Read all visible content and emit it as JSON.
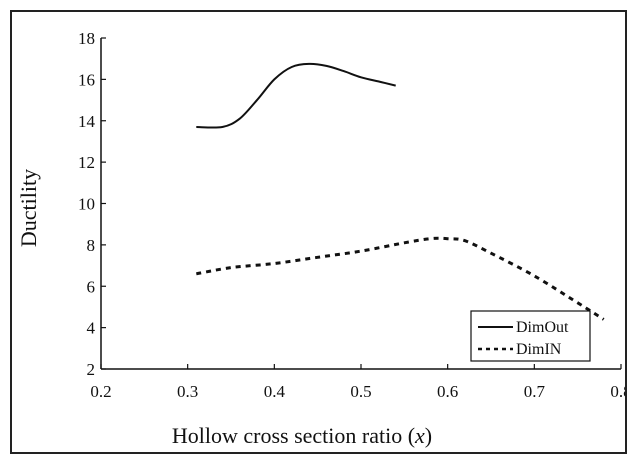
{
  "chart_data": {
    "type": "line",
    "xlabel": "Hollow cross section ratio (",
    "xlabel_var": "x",
    "xlabel_close": ")",
    "ylabel": "Ductility",
    "xlim": [
      0.2,
      0.8
    ],
    "ylim": [
      2,
      18
    ],
    "xticks": [
      "0.2",
      "0.3",
      "0.4",
      "0.5",
      "0.6",
      "0.7",
      "0.8"
    ],
    "yticks": [
      "2",
      "4",
      "6",
      "8",
      "10",
      "12",
      "14",
      "16",
      "18"
    ],
    "grid": false,
    "legend_position": "bottom-right",
    "series": [
      {
        "name": "DimOut",
        "style": "solid",
        "color": "#111111",
        "x": [
          0.31,
          0.34,
          0.36,
          0.38,
          0.4,
          0.42,
          0.44,
          0.46,
          0.48,
          0.5,
          0.52,
          0.54
        ],
        "y": [
          13.7,
          13.7,
          14.1,
          15.0,
          16.0,
          16.6,
          16.75,
          16.65,
          16.4,
          16.1,
          15.9,
          15.7
        ]
      },
      {
        "name": "DimIN",
        "style": "dashed",
        "color": "#111111",
        "x": [
          0.31,
          0.35,
          0.4,
          0.45,
          0.5,
          0.55,
          0.58,
          0.6,
          0.62,
          0.65,
          0.7,
          0.75,
          0.78
        ],
        "y": [
          6.6,
          6.9,
          7.1,
          7.4,
          7.7,
          8.1,
          8.3,
          8.3,
          8.2,
          7.6,
          6.5,
          5.2,
          4.4
        ]
      }
    ]
  }
}
